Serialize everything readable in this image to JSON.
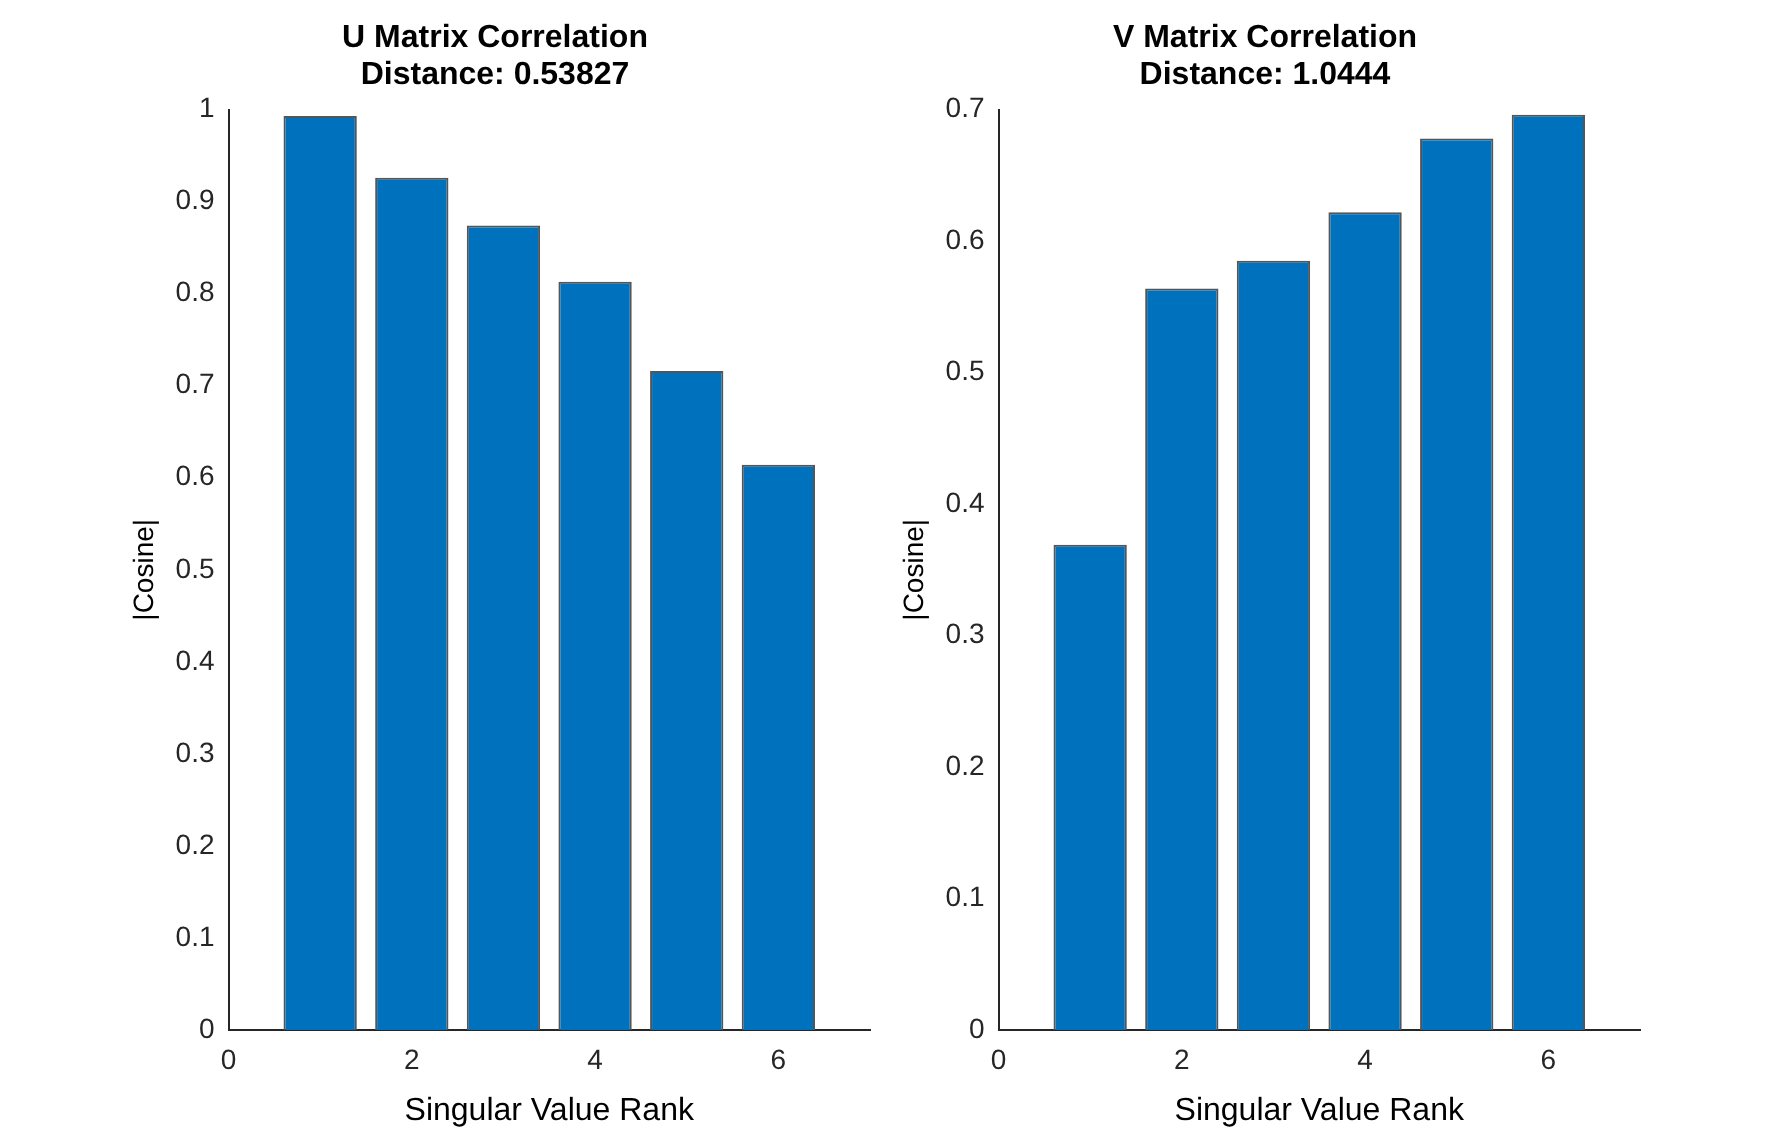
{
  "chart_data": [
    {
      "type": "bar",
      "title": "U Matrix Correlation",
      "subtitle": "Distance: 0.53827",
      "xlabel": "Singular Value Rank",
      "ylabel": "|Cosine|",
      "x": [
        1,
        2,
        3,
        4,
        5,
        6
      ],
      "values": [
        0.993,
        0.926,
        0.874,
        0.813,
        0.716,
        0.614
      ],
      "color": "#0072bd",
      "xlim": [
        0,
        7
      ],
      "xticks": [
        0,
        2,
        4,
        6
      ],
      "ylim": [
        0,
        1
      ],
      "yticks": [
        0,
        0.1,
        0.2,
        0.3,
        0.4,
        0.5,
        0.6,
        0.7,
        0.8,
        0.9,
        1
      ],
      "grid": false,
      "legend": false
    },
    {
      "type": "bar",
      "title": "V Matrix Correlation",
      "subtitle": "Distance: 1.0444",
      "xlabel": "Singular Value Rank",
      "ylabel": "|Cosine|",
      "x": [
        1,
        2,
        3,
        4,
        5,
        6
      ],
      "values": [
        0.369,
        0.564,
        0.585,
        0.622,
        0.678,
        0.696
      ],
      "color": "#0072bd",
      "xlim": [
        0,
        7
      ],
      "xticks": [
        0,
        2,
        4,
        6
      ],
      "ylim": [
        0,
        0.7
      ],
      "yticks": [
        0,
        0.1,
        0.2,
        0.3,
        0.4,
        0.5,
        0.6,
        0.7
      ],
      "grid": false,
      "legend": false
    }
  ]
}
